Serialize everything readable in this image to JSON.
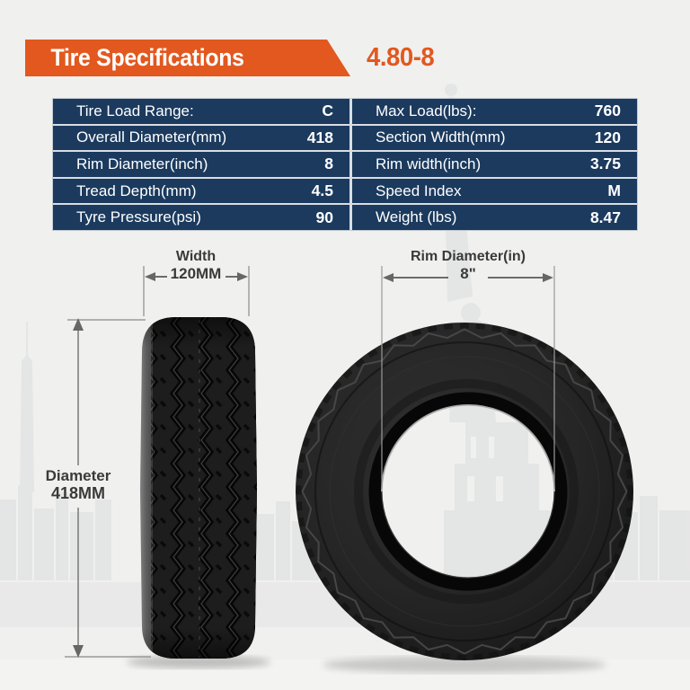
{
  "page": {
    "background_color": "#f0f0ef"
  },
  "header": {
    "title": "Tire Specifications",
    "tire_size": "4.80-8",
    "banner_color": "#e2581e"
  },
  "spec_table": {
    "background_color": "#1b3a5e",
    "text_color": "#ffffff",
    "rows": [
      {
        "left": {
          "label": "Tire Load Range:",
          "value": "C"
        },
        "right": {
          "label": "Max Load(lbs):",
          "value": "760"
        }
      },
      {
        "left": {
          "label": "Overall Diameter(mm)",
          "value": "418"
        },
        "right": {
          "label": "Section Width(mm)",
          "value": "120"
        }
      },
      {
        "left": {
          "label": "Rim Diameter(inch)",
          "value": "8"
        },
        "right": {
          "label": "Rim width(inch)",
          "value": "3.75"
        }
      },
      {
        "left": {
          "label": "Tread Depth(mm)",
          "value": "4.5"
        },
        "right": {
          "label": "Speed Index",
          "value": "M"
        }
      },
      {
        "left": {
          "label": "Tyre Pressure(psi)",
          "value": "90"
        },
        "right": {
          "label": "Weight (lbs)",
          "value": "8.47"
        }
      }
    ]
  },
  "annotations": {
    "width": {
      "title": "Width",
      "value": "120MM"
    },
    "rim_diameter": {
      "title": "Rim Diameter(in)",
      "value": "8\""
    },
    "overall_diameter": {
      "title": "Diameter",
      "value": "418MM"
    }
  }
}
